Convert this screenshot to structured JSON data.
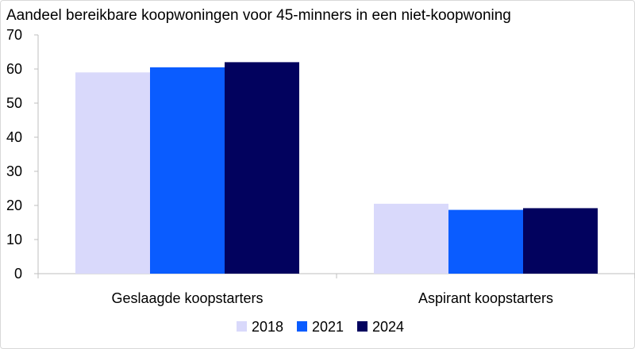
{
  "chart_data": {
    "type": "bar",
    "title": "Aandeel bereikbare koopwoningen voor 45-minners in een niet-koopwoning",
    "xlabel": "",
    "ylabel": "",
    "categories": [
      "Geslaagde koopstarters",
      "Aspirant koopstarters"
    ],
    "series": [
      {
        "name": "2018",
        "color": "#d9d9fb",
        "values": [
          59,
          20.5
        ]
      },
      {
        "name": "2021",
        "color": "#0a5cff",
        "values": [
          60.5,
          18.7
        ]
      },
      {
        "name": "2024",
        "color": "#02025e",
        "values": [
          62,
          19.2
        ]
      }
    ],
    "ylim": [
      0,
      70
    ],
    "yticks": [
      0,
      10,
      20,
      30,
      40,
      50,
      60,
      70
    ],
    "grid": false,
    "legend_position": "bottom"
  }
}
